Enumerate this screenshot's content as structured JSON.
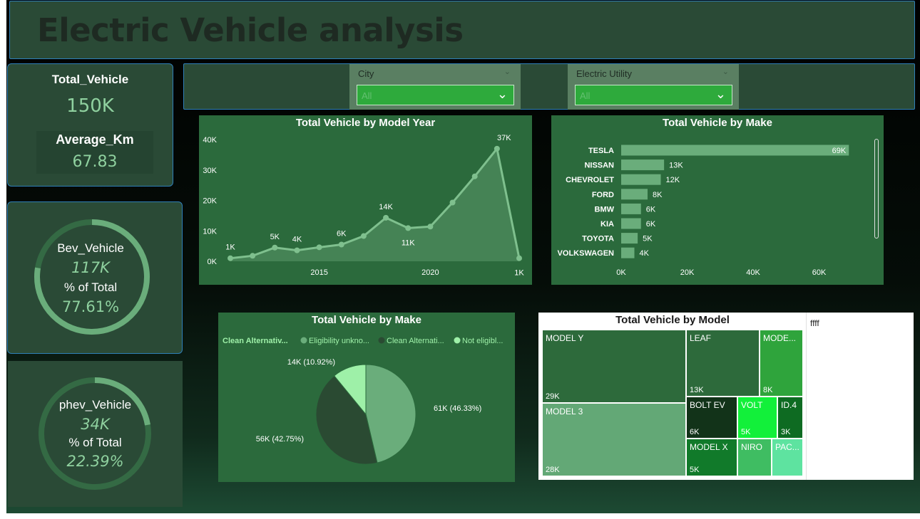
{
  "header": {
    "title": "Electric Vehicle analysis"
  },
  "kpis": {
    "total_label": "Total_Vehicle",
    "total_value": "150K",
    "avg_label": "Average_Km",
    "avg_value": "67.83"
  },
  "bev": {
    "label": "Bev_Vehicle",
    "value": "117K",
    "pct_label": "% of Total",
    "pct_value": "77.61%",
    "fraction": 0.7761
  },
  "phev": {
    "label": "phev_Vehicle",
    "value": "34K",
    "pct_label": "% of Total",
    "pct_value": "22.39%",
    "fraction": 0.2239
  },
  "filters": [
    {
      "title": "City",
      "value": "All"
    },
    {
      "title": "Electric Utility",
      "value": "All"
    }
  ],
  "colors": {
    "panel": "#2a4a36",
    "chart_bg": "#2b6a3c",
    "accent": "#2eaa3c",
    "series_light": "#6aad7b",
    "series_dark": "#2a4a32",
    "series_mint": "#9ef0a8"
  },
  "chart_data": [
    {
      "type": "area",
      "title": "Total Vehicle by Model Year",
      "x": [
        2011,
        2012,
        2013,
        2014,
        2015,
        2016,
        2017,
        2018,
        2019,
        2020,
        2021,
        2022,
        2023,
        2024
      ],
      "y": [
        1000,
        1800,
        4500,
        3600,
        4600,
        5500,
        8300,
        14300,
        10900,
        11400,
        19300,
        27900,
        37000,
        1000
      ],
      "data_labels": [
        {
          "x": 2011,
          "text": "1K"
        },
        {
          "x": 2013,
          "text": "5K"
        },
        {
          "x": 2014,
          "text": "4K"
        },
        {
          "x": 2016,
          "text": "6K"
        },
        {
          "x": 2018,
          "text": "14K"
        },
        {
          "x": 2019,
          "text": "11K"
        },
        {
          "x": 2023,
          "text": "37K"
        },
        {
          "x": 2024,
          "text": "1K"
        }
      ],
      "xticks": [
        2015,
        2020
      ],
      "yticks": [
        0,
        10000,
        20000,
        30000,
        40000
      ],
      "ytick_labels": [
        "0K",
        "10K",
        "20K",
        "30K",
        "40K"
      ],
      "ylim": [
        0,
        40000
      ]
    },
    {
      "type": "bar",
      "title": "Total Vehicle by Make",
      "categories": [
        "TESLA",
        "NISSAN",
        "CHEVROLET",
        "FORD",
        "BMW",
        "KIA",
        "TOYOTA",
        "VOLKSWAGEN"
      ],
      "values": [
        69000,
        13000,
        12000,
        8000,
        6000,
        6000,
        5000,
        4000
      ],
      "value_labels": [
        "69K",
        "13K",
        "12K",
        "8K",
        "6K",
        "6K",
        "5K",
        "4K"
      ],
      "xticks": [
        0,
        20000,
        40000,
        60000
      ],
      "xtick_labels": [
        "0K",
        "20K",
        "40K",
        "60K"
      ],
      "xlim": [
        0,
        75000
      ]
    },
    {
      "type": "pie",
      "title": "Total Vehicle by Make",
      "legend": [
        "Clean Alternativ...",
        "Eligibility unkno...",
        "Clean Alternati...",
        "Not eligibl..."
      ],
      "slices": [
        {
          "label": "61K (46.33%)",
          "value": 46.33,
          "color": "#6aad7b"
        },
        {
          "label": "56K (42.75%)",
          "value": 42.75,
          "color": "#2a4a32"
        },
        {
          "label": "14K (10.92%)",
          "value": 10.92,
          "color": "#9ef0a8"
        }
      ]
    },
    {
      "type": "treemap",
      "title": "Total Vehicle by Model",
      "tiles": [
        {
          "label": "MODEL Y",
          "value": "29K",
          "color": "#2d6a3b"
        },
        {
          "label": "MODEL 3",
          "value": "28K",
          "color": "#63a876"
        },
        {
          "label": "LEAF",
          "value": "13K",
          "color": "#2d6a3b"
        },
        {
          "label": "MODE...",
          "value": "8K",
          "color": "#2fa43c"
        },
        {
          "label": "BOLT EV",
          "value": "6K",
          "color": "#123319"
        },
        {
          "label": "VOLT",
          "value": "5K",
          "color": "#12f03a"
        },
        {
          "label": "ID.4",
          "value": "3K",
          "color": "#0e6b22"
        },
        {
          "label": "MODEL X",
          "value": "5K",
          "color": "#117a2a"
        },
        {
          "label": "NIRO",
          "value": "",
          "color": "#3fbd62"
        },
        {
          "label": "PAC...",
          "value": "",
          "color": "#5ee3a0"
        }
      ],
      "side_text": "ffff"
    }
  ]
}
